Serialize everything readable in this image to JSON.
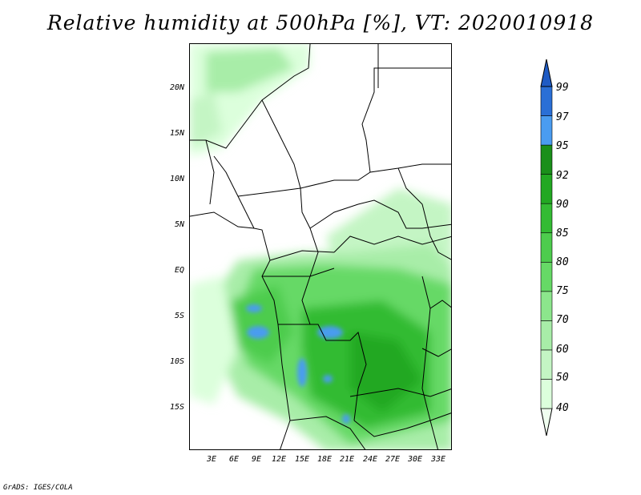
{
  "title": "Relative humidity at 500hPa [%], VT: 2020010918",
  "credit": "GrADS: IGES/COLA",
  "lat_labels": [
    "20N",
    "15N",
    "10N",
    "5N",
    "EQ",
    "5S",
    "10S",
    "15S"
  ],
  "lon_labels": [
    "3E",
    "6E",
    "9E",
    "12E",
    "15E",
    "18E",
    "21E",
    "24E",
    "27E",
    "30E",
    "33E"
  ],
  "colorbar": {
    "levels": [
      "40",
      "50",
      "60",
      "70",
      "75",
      "80",
      "85",
      "90",
      "92",
      "95",
      "97",
      "99"
    ],
    "colors": [
      "#f0fff0",
      "#dcffdc",
      "#c4f5c4",
      "#a8eda8",
      "#8ce68c",
      "#66d966",
      "#4dcc4d",
      "#33bb33",
      "#22a822",
      "#1a8f1a",
      "#4a9cf0",
      "#2a6fd6",
      "#1f5bc4"
    ]
  },
  "map": {
    "lon_range": [
      0,
      35
    ],
    "lat_range": [
      -20,
      24
    ]
  }
}
